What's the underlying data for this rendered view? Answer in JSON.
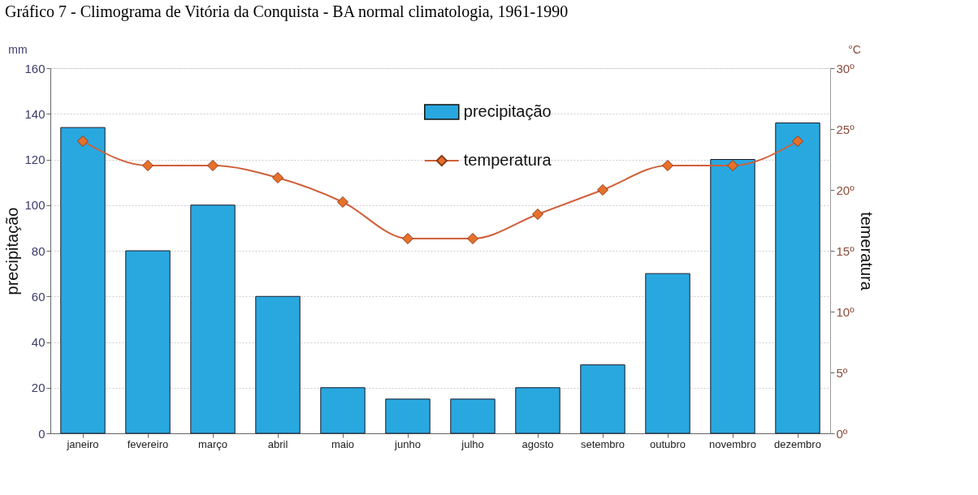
{
  "chart_data": {
    "type": "bar",
    "title": "Gráfico 7 - Climograma de Vitória da Conquista - BA normal climatologia, 1961-1990",
    "categories": [
      "janeiro",
      "fevereiro",
      "março",
      "abril",
      "maio",
      "junho",
      "julho",
      "agosto",
      "setembro",
      "outubro",
      "novembro",
      "dezembro"
    ],
    "series": [
      {
        "name": "precipitação",
        "color": "#29a8e0",
        "values": [
          134,
          80,
          100,
          60,
          20,
          15,
          15,
          20,
          30,
          70,
          120,
          136
        ]
      },
      {
        "name": "temperatura",
        "type": "line",
        "axis": "y2",
        "color": "#d0603a",
        "marker": "diamond",
        "values": [
          24,
          22,
          22,
          21,
          19,
          16,
          16,
          18,
          20,
          22,
          22,
          24
        ]
      }
    ],
    "ylabel": "precipitação",
    "y2label": "temeratura",
    "ylim": [
      0,
      160
    ],
    "yticks": [
      0,
      20,
      40,
      60,
      80,
      100,
      120,
      140,
      160
    ],
    "y2lim": [
      0,
      30
    ],
    "y2ticks": [
      {
        "value": 0,
        "label": "0º"
      },
      {
        "value": 5,
        "label": "5º"
      },
      {
        "value": 10,
        "label": "10º"
      },
      {
        "value": 15,
        "label": "15º"
      },
      {
        "value": 20,
        "label": "20º"
      },
      {
        "value": 25,
        "label": "25º"
      },
      {
        "value": 30,
        "label": "30º"
      }
    ],
    "annotations": [
      "mm",
      "°C"
    ],
    "grid": "y",
    "legend": "top"
  }
}
